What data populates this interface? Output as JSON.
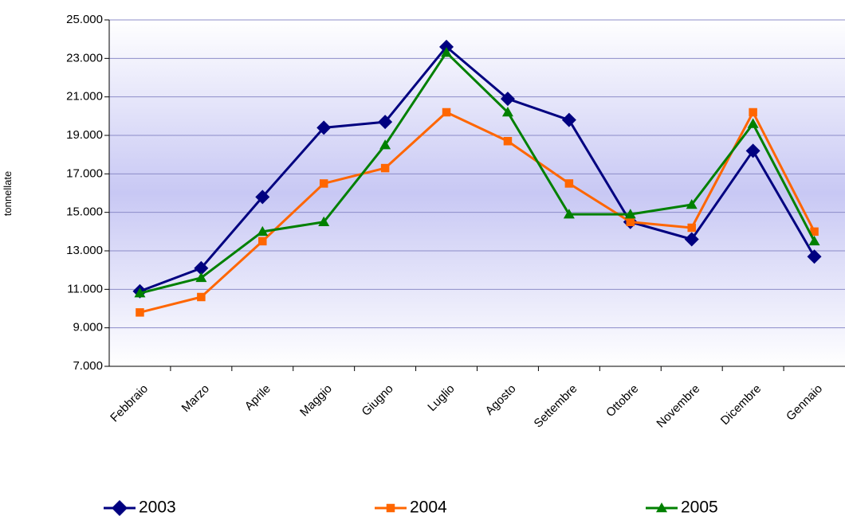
{
  "chart_data": {
    "type": "line",
    "y_label": "tonnellate",
    "categories": [
      "Febbraio",
      "Marzo",
      "Aprile",
      "Maggio",
      "Giugno",
      "Luglio",
      "Agosto",
      "Settembre",
      "Ottobre",
      "Novembre",
      "Dicembre",
      "Gennaio"
    ],
    "series": [
      {
        "name": "2003",
        "color": "#000080",
        "marker": "diamond",
        "values": [
          10900,
          12100,
          15800,
          19400,
          19700,
          23600,
          20900,
          19800,
          14500,
          13600,
          18200,
          12700
        ]
      },
      {
        "name": "2004",
        "color": "#ff6600",
        "marker": "square",
        "values": [
          9800,
          10600,
          13500,
          16500,
          17300,
          20200,
          18700,
          16500,
          14500,
          14200,
          20200,
          14000
        ]
      },
      {
        "name": "2005",
        "color": "#008000",
        "marker": "triangle",
        "values": [
          10800,
          11600,
          14000,
          14500,
          18500,
          23300,
          20200,
          14900,
          14900,
          15400,
          19600,
          13500
        ]
      }
    ],
    "ylim": [
      7000,
      25000
    ],
    "yticks": [
      {
        "value": 7000,
        "label": "7.000"
      },
      {
        "value": 9000,
        "label": "9.000"
      },
      {
        "value": 11000,
        "label": "11.000"
      },
      {
        "value": 13000,
        "label": "13.000"
      },
      {
        "value": 15000,
        "label": "15.000"
      },
      {
        "value": 17000,
        "label": "17.000"
      },
      {
        "value": 19000,
        "label": "19.000"
      },
      {
        "value": 21000,
        "label": "21.000"
      },
      {
        "value": 23000,
        "label": "23.000"
      },
      {
        "value": 25000,
        "label": "25.000"
      }
    ],
    "grid": true,
    "legend": "bottom"
  }
}
